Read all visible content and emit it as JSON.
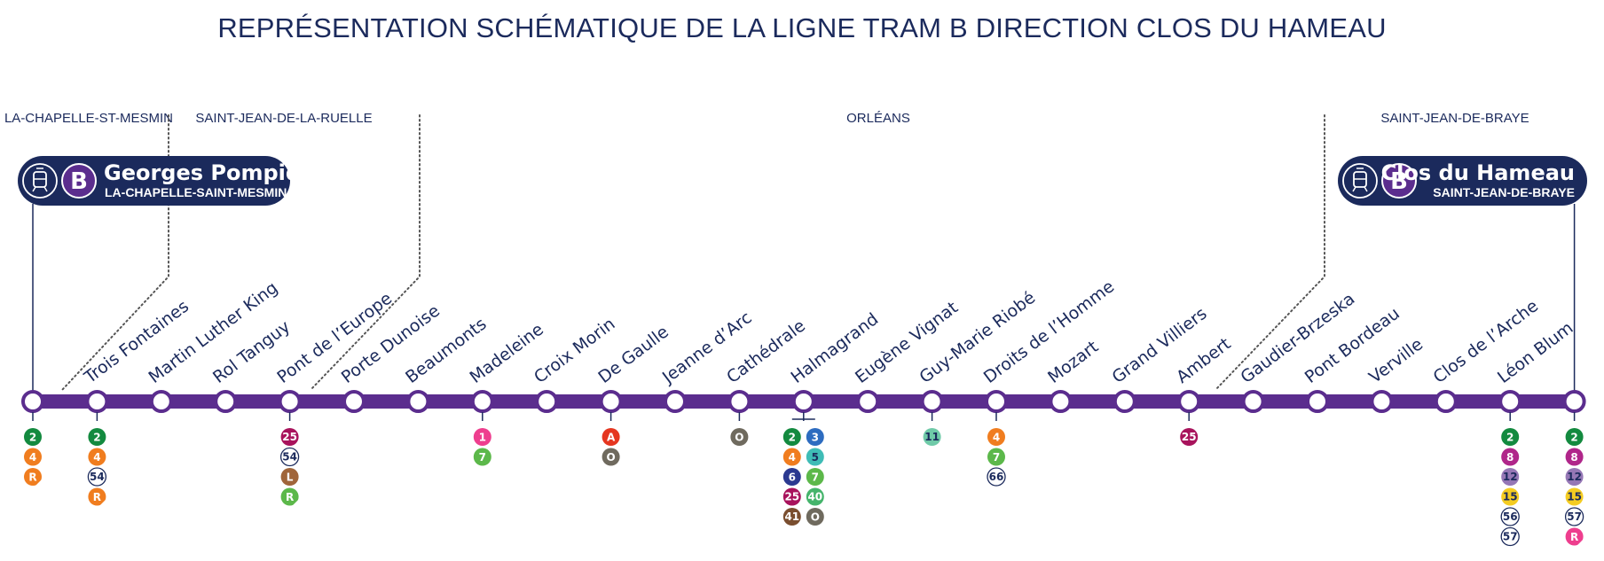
{
  "title": "REPRÉSENTATION SCHÉMATIQUE DE LA LIGNE TRAM B DIRECTION CLOS DU HAMEAU",
  "colors": {
    "line": "#5b2d8e",
    "navy": "#1b2a5c",
    "separator": "#555555"
  },
  "zones": [
    {
      "name": "LA-CHAPELLE-ST-MESMIN",
      "start": 0,
      "end": 0.5
    },
    {
      "name": "SAINT-JEAN-DE-LA-RUELLE",
      "start": 0.5,
      "end": 4.5
    },
    {
      "name": "ORLÉANS",
      "start": 4.5,
      "end": 19.5
    },
    {
      "name": "SAINT-JEAN-DE-BRAYE",
      "start": 19.5,
      "end": 24
    }
  ],
  "terminals": [
    {
      "name": "Georges Pompidou",
      "town": "LA-CHAPELLE-SAINT-MESMIN",
      "line": "B",
      "icon": "tram-icon",
      "side": "left"
    },
    {
      "name": "Clos du Hameau",
      "town": "SAINT-JEAN-DE-BRAYE",
      "line": "B",
      "icon": "tram-icon",
      "side": "right"
    }
  ],
  "stations": [
    {
      "name": "",
      "terminal": true,
      "connections": [
        [
          "2"
        ],
        [
          "4"
        ],
        [
          "R"
        ]
      ]
    },
    {
      "name": "Trois Fontaines",
      "connections": [
        [
          "2"
        ],
        [
          "4"
        ],
        [
          "54"
        ],
        [
          "R"
        ]
      ]
    },
    {
      "name": "Martin Luther King",
      "connections": []
    },
    {
      "name": "Rol Tanguy",
      "connections": []
    },
    {
      "name": "Pont de l’Europe",
      "connections": [
        [
          "25"
        ],
        [
          "54"
        ],
        [
          "L"
        ],
        [
          "R"
        ]
      ]
    },
    {
      "name": "Porte Dunoise",
      "connections": []
    },
    {
      "name": "Beaumonts",
      "connections": []
    },
    {
      "name": "Madeleine",
      "connections": [
        [
          "1"
        ],
        [
          "7"
        ]
      ]
    },
    {
      "name": "Croix Morin",
      "connections": []
    },
    {
      "name": "De Gaulle",
      "connections": [
        [
          "A"
        ],
        [
          "O"
        ]
      ]
    },
    {
      "name": "Jeanne d’Arc",
      "connections": []
    },
    {
      "name": "Cathédrale",
      "connections": [
        [
          "O"
        ]
      ]
    },
    {
      "name": "Halmagrand",
      "bracket": true,
      "connections": [
        [
          "2",
          "3"
        ],
        [
          "4",
          "5"
        ],
        [
          "6",
          "7"
        ],
        [
          "25",
          "40"
        ],
        [
          "41",
          "O"
        ]
      ]
    },
    {
      "name": "Eugène Vignat",
      "connections": []
    },
    {
      "name": "Guy-Marie Riobé",
      "connections": [
        [
          "11"
        ]
      ]
    },
    {
      "name": "Droits de l’Homme",
      "connections": [
        [
          "4"
        ],
        [
          "7"
        ],
        [
          "66"
        ]
      ]
    },
    {
      "name": "Mozart",
      "connections": []
    },
    {
      "name": "Grand Villiers",
      "connections": []
    },
    {
      "name": "Ambert",
      "connections": [
        [
          "25"
        ]
      ]
    },
    {
      "name": "Gaudier-Brzeska",
      "connections": []
    },
    {
      "name": "Pont Bordeau",
      "connections": []
    },
    {
      "name": "Verville",
      "connections": []
    },
    {
      "name": "Clos de l’Arche",
      "connections": []
    },
    {
      "name": "Léon Blum",
      "connections": [
        [
          "2"
        ],
        [
          "8"
        ],
        [
          "12"
        ],
        [
          "15"
        ],
        [
          "56"
        ],
        [
          "57"
        ]
      ]
    },
    {
      "name": "",
      "terminal": true,
      "connections": [
        [
          "2"
        ],
        [
          "8"
        ],
        [
          "12"
        ],
        [
          "15"
        ],
        [
          "57"
        ],
        [
          "R"
        ]
      ]
    }
  ],
  "badge_styles": {
    "1": {
      "bg": "#ee3e8e",
      "fg": "#ffffff"
    },
    "2": {
      "bg": "#138a3f",
      "fg": "#ffffff"
    },
    "3": {
      "bg": "#2d6cc0",
      "fg": "#ffffff"
    },
    "4": {
      "bg": "#f07d1f",
      "fg": "#ffffff"
    },
    "5": {
      "bg": "#3fbcb6",
      "fg": "#1b2a5c"
    },
    "6": {
      "bg": "#2b3990",
      "fg": "#ffffff"
    },
    "7": {
      "bg": "#5cb84a",
      "fg": "#ffffff"
    },
    "8": {
      "bg": "#b0268a",
      "fg": "#ffffff"
    },
    "11": {
      "bg": "#6fcaa8",
      "fg": "#1b2a5c"
    },
    "12": {
      "bg": "#9577b5",
      "fg": "#1b2a5c"
    },
    "15": {
      "bg": "#f4cc22",
      "fg": "#1b2a5c"
    },
    "25": {
      "bg": "#a8135c",
      "fg": "#ffffff"
    },
    "40": {
      "bg": "#45b46b",
      "fg": "#ffffff"
    },
    "41": {
      "bg": "#7a4e2f",
      "fg": "#ffffff"
    },
    "54": {
      "bg": "#ffffff",
      "fg": "#1b2a5c",
      "border": "#1b2a5c"
    },
    "56": {
      "bg": "#ffffff",
      "fg": "#1b2a5c",
      "border": "#1b2a5c"
    },
    "57": {
      "bg": "#ffffff",
      "fg": "#1b2a5c",
      "border": "#1b2a5c"
    },
    "66": {
      "bg": "#ffffff",
      "fg": "#1b2a5c",
      "border": "#1b2a5c"
    },
    "A": {
      "bg": "#e53620",
      "fg": "#ffffff"
    },
    "L": {
      "bg": "#a0653a",
      "fg": "#ffffff"
    },
    "O": {
      "bg": "#6f6a5e",
      "fg": "#ffffff"
    },
    "R": {
      "bg": "#f07d1f",
      "fg": "#ffffff",
      "corner": "#ffffff"
    },
    "R_pink": {
      "bg": "#ee3e8e",
      "fg": "#ffffff"
    },
    "R_green": {
      "bg": "#5cb84a",
      "fg": "#ffffff"
    }
  },
  "badge_variants": {
    "4": {
      "R": "R_green"
    },
    "24": {
      "R": "R_pink"
    }
  }
}
